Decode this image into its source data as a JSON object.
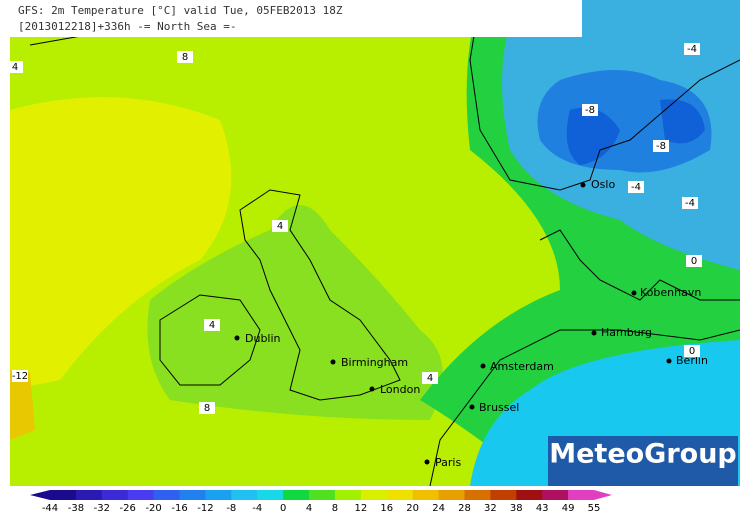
{
  "header": {
    "line1": "GFS: 2m Temperature [°C] valid Tue, 05FEB2013 18Z",
    "line2": "[2013012218]+336h  -= North Sea =-"
  },
  "cities": [
    "Oslo",
    "Kobenhavn",
    "Hamburg",
    "Berlin",
    "Amsterdam",
    "Dublin",
    "Birmingham",
    "London",
    "Brussel",
    "Paris"
  ],
  "contour_labels": [
    "8",
    "4",
    "4",
    "8",
    "4",
    "-8",
    "-8",
    "-4",
    "-4",
    "-4",
    "0",
    "0",
    "-12",
    "4"
  ],
  "legend": {
    "ticks": [
      -44,
      -38,
      -32,
      -26,
      -20,
      -16,
      -12,
      -8,
      -4,
      0,
      4,
      8,
      12,
      16,
      20,
      24,
      28,
      32,
      38,
      43,
      49,
      55
    ],
    "colors": [
      "#1a0a8c",
      "#2a1ab4",
      "#3a2ad8",
      "#4a3cf0",
      "#3060f0",
      "#2080f0",
      "#1aa0f0",
      "#20c0f0",
      "#18d8e8",
      "#10d840",
      "#50e020",
      "#a0f000",
      "#d8f000",
      "#f0e000",
      "#f0c000",
      "#e8a000",
      "#d87000",
      "#c04000",
      "#a01010",
      "#b01060",
      "#e040c0"
    ]
  },
  "logo": "MeteoGroup"
}
